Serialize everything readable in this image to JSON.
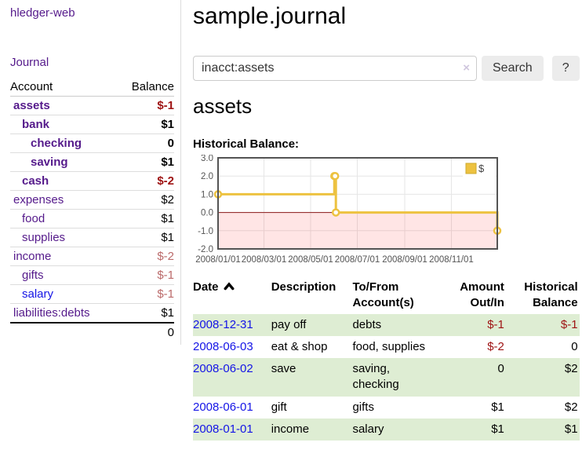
{
  "app": {
    "title": "hledger-web",
    "nav_journal": "Journal"
  },
  "sidebar": {
    "columns": {
      "account": "Account",
      "balance": "Balance"
    },
    "accounts": [
      {
        "name": "assets",
        "indent": 0,
        "balance": "$-1",
        "matched": true
      },
      {
        "name": "bank",
        "indent": 1,
        "balance": "$1",
        "matched": true
      },
      {
        "name": "checking",
        "indent": 2,
        "balance": "0",
        "matched": true
      },
      {
        "name": "saving",
        "indent": 2,
        "balance": "$1",
        "matched": true
      },
      {
        "name": "cash",
        "indent": 1,
        "balance": "$-2",
        "matched": true
      },
      {
        "name": "expenses",
        "indent": 0,
        "balance": "$2",
        "matched": false
      },
      {
        "name": "food",
        "indent": 1,
        "balance": "$1",
        "matched": false
      },
      {
        "name": "supplies",
        "indent": 1,
        "balance": "$1",
        "matched": false
      },
      {
        "name": "income",
        "indent": 0,
        "balance": "$-2",
        "matched": false
      },
      {
        "name": "gifts",
        "indent": 1,
        "balance": "$-1",
        "matched": false
      },
      {
        "name": "salary",
        "indent": 1,
        "balance": "$-1",
        "matched": false,
        "unvisited": true
      },
      {
        "name": "liabilities:debts",
        "indent": 0,
        "balance": "$1",
        "matched": false
      }
    ],
    "total": "0"
  },
  "main": {
    "title": "sample.journal",
    "search": {
      "value": "inacct:assets",
      "clear_icon": "×",
      "button_label": "Search",
      "help_label": "?"
    },
    "account_heading": "assets",
    "section_label": "Historical Balance:"
  },
  "chart_data": {
    "type": "line",
    "step": true,
    "title": "Historical Balance",
    "series": [
      {
        "name": "$",
        "color": "#edc240",
        "x": [
          "2008-01-01",
          "2008-06-01",
          "2008-06-02",
          "2008-06-03",
          "2008-12-31"
        ],
        "x_day": [
          0,
          152,
          153,
          154,
          365
        ],
        "values": [
          1,
          2,
          2,
          0,
          -1
        ]
      }
    ],
    "xlim_days": [
      0,
      365
    ],
    "ylim": [
      -2,
      3
    ],
    "yticks": [
      {
        "v": 3,
        "label": "3.0"
      },
      {
        "v": 2,
        "label": "2.0"
      },
      {
        "v": 1,
        "label": "1.0"
      },
      {
        "v": 0,
        "label": "0.0"
      },
      {
        "v": -1,
        "label": "-1.0"
      },
      {
        "v": -2,
        "label": "-2.0"
      }
    ],
    "xticks": [
      {
        "day": 0,
        "label": "2008/01/01"
      },
      {
        "day": 60,
        "label": "2008/03/01"
      },
      {
        "day": 121,
        "label": "2008/05/01"
      },
      {
        "day": 182,
        "label": "2008/07/01"
      },
      {
        "day": 244,
        "label": "2008/09/01"
      },
      {
        "day": 305,
        "label": "2008/11/01"
      }
    ],
    "grid": true,
    "legend": {
      "position": "top-right",
      "entries": [
        {
          "label": "$",
          "color": "#edc240"
        }
      ]
    },
    "negative_region": {
      "below": 0,
      "color": "rgba(255,0,0,0.10)",
      "zero_line_color": "#8b1a1a"
    }
  },
  "register": {
    "headers": [
      "Date",
      "Description",
      "To/From Account(s)",
      "Amount Out/In",
      "Historical Balance"
    ],
    "sort_icon": "chevron-up",
    "rows": [
      {
        "date": "2008-12-31",
        "description": "pay off",
        "accounts": "debts",
        "amount": "$-1",
        "balance": "$-1"
      },
      {
        "date": "2008-06-03",
        "description": "eat & shop",
        "accounts": "food, supplies",
        "amount": "$-2",
        "balance": "0"
      },
      {
        "date": "2008-06-02",
        "description": "save",
        "accounts": "saving, checking",
        "amount": "0",
        "balance": "$2"
      },
      {
        "date": "2008-06-01",
        "description": "gift",
        "accounts": "gifts",
        "amount": "$1",
        "balance": "$2"
      },
      {
        "date": "2008-01-01",
        "description": "income",
        "accounts": "salary",
        "amount": "$1",
        "balance": "$1"
      }
    ]
  },
  "colors": {
    "link_purple": "#551a8b",
    "link_blue": "#1414e6",
    "negative_strong": "#9e1212",
    "negative_soft": "#bb6a6a",
    "row_positive_bg": "#deedd3",
    "series_gold": "#edc240"
  }
}
